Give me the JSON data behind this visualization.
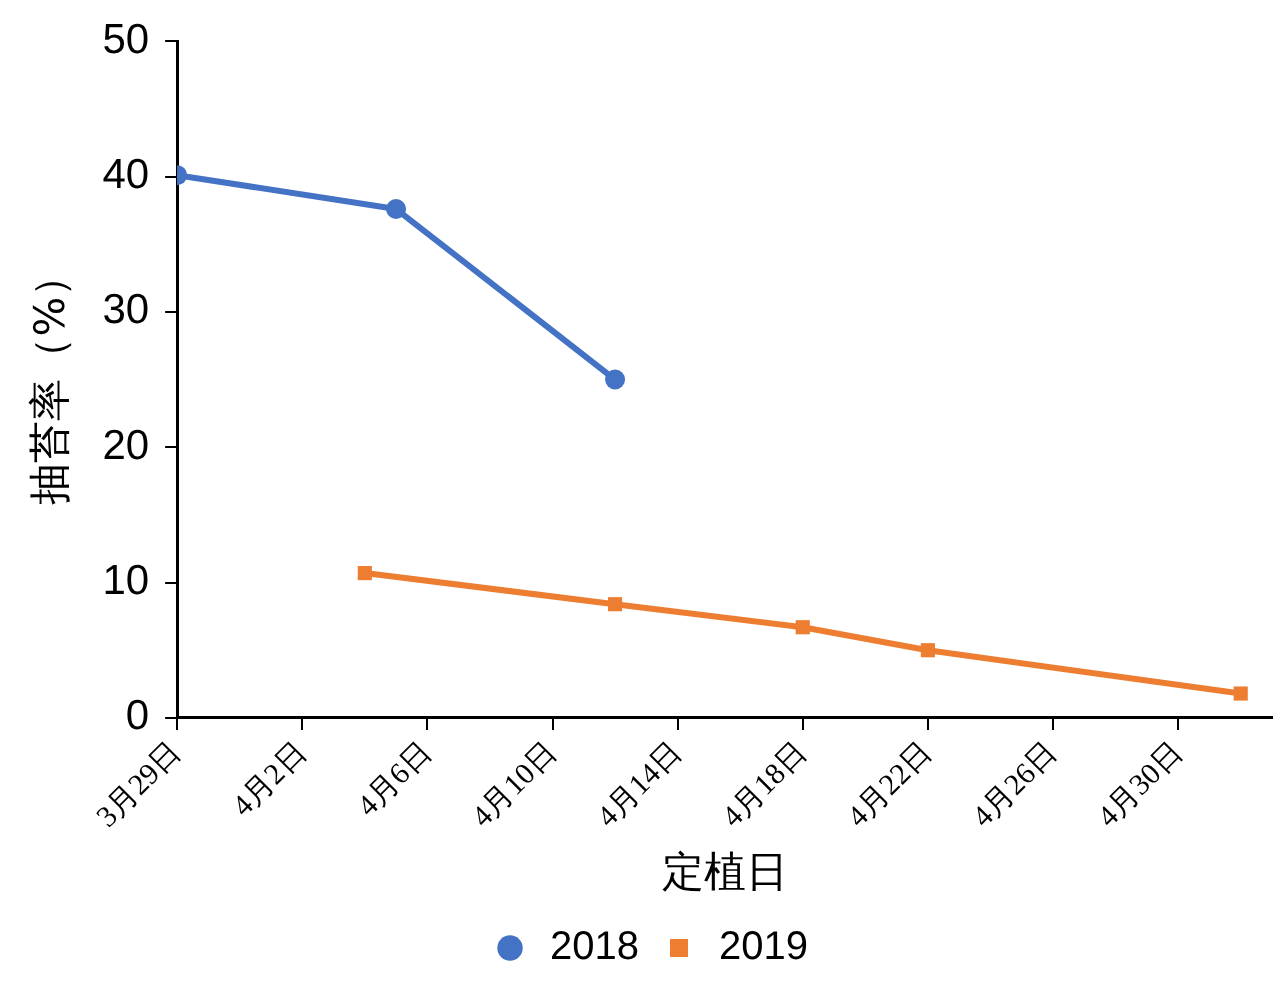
{
  "chart_data": {
    "type": "line",
    "xlabel": "定植日",
    "ylabel": "抽苔率（%）",
    "xlim": [
      "--03-29",
      "--05-03"
    ],
    "xticks": [
      {
        "value": "--03-29",
        "label": "3月29日"
      },
      {
        "value": "--04-02",
        "label": "4月2日"
      },
      {
        "value": "--04-06",
        "label": "4月6日"
      },
      {
        "value": "--04-10",
        "label": "4月10日"
      },
      {
        "value": "--04-14",
        "label": "4月14日"
      },
      {
        "value": "--04-18",
        "label": "4月18日"
      },
      {
        "value": "--04-22",
        "label": "4月22日"
      },
      {
        "value": "--04-26",
        "label": "4月26日"
      },
      {
        "value": "--04-30",
        "label": "4月30日"
      }
    ],
    "ylim": [
      0,
      50
    ],
    "yticks": [
      0,
      10,
      20,
      30,
      40,
      50
    ],
    "grid": false,
    "legend": "bottom",
    "line_style": "solid",
    "series": [
      {
        "name": "2018",
        "color": "#4472c4",
        "marker": "circle",
        "x": [
          "--03-29",
          "--04-05",
          "--04-12"
        ],
        "values": [
          40.1,
          37.6,
          25.0
        ]
      },
      {
        "name": "2019",
        "color": "#ed7d31",
        "marker": "square",
        "x": [
          "--04-04",
          "--04-12",
          "--04-18",
          "--04-22",
          "--05-02"
        ],
        "values": [
          10.7,
          8.4,
          6.7,
          5.0,
          1.8
        ]
      }
    ]
  }
}
